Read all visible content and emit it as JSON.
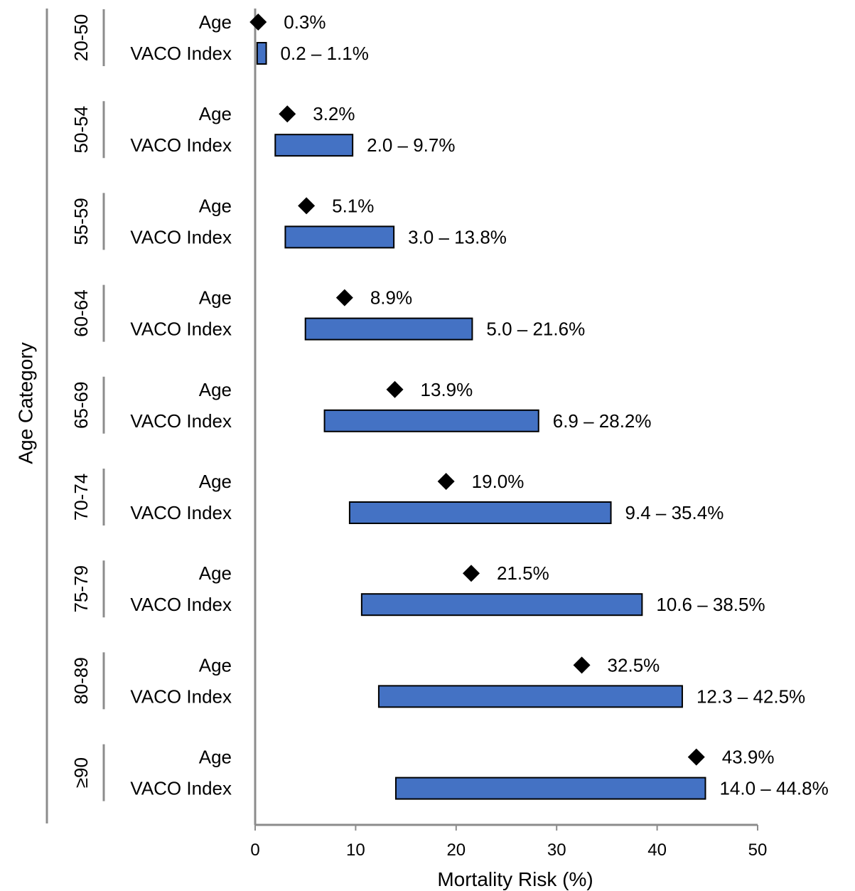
{
  "chart_data": {
    "type": "forest-range",
    "xlabel": "Mortality Risk (%)",
    "ylabel": "Age Category",
    "xlim": [
      0,
      50
    ],
    "xticks": [
      "0",
      "10",
      "20",
      "30",
      "40",
      "50"
    ],
    "row_labels": {
      "point": "Age",
      "range": "VACO Index"
    },
    "colors": {
      "range": "#4472C4",
      "point": "#000000",
      "axis": "#8c8c8c"
    },
    "categories": [
      {
        "name": "20-50",
        "age_value": 0.3,
        "age_label": "0.3%",
        "range": [
          0.2,
          1.1
        ],
        "range_label": "0.2 – 1.1%"
      },
      {
        "name": "50-54",
        "age_value": 3.2,
        "age_label": "3.2%",
        "range": [
          2.0,
          9.7
        ],
        "range_label": "2.0 – 9.7%"
      },
      {
        "name": "55-59",
        "age_value": 5.1,
        "age_label": "5.1%",
        "range": [
          3.0,
          13.8
        ],
        "range_label": "3.0 – 13.8%"
      },
      {
        "name": "60-64",
        "age_value": 8.9,
        "age_label": "8.9%",
        "range": [
          5.0,
          21.6
        ],
        "range_label": "5.0 – 21.6%"
      },
      {
        "name": "65-69",
        "age_value": 13.9,
        "age_label": "13.9%",
        "range": [
          6.9,
          28.2
        ],
        "range_label": "6.9 – 28.2%"
      },
      {
        "name": "70-74",
        "age_value": 19.0,
        "age_label": "19.0%",
        "range": [
          9.4,
          35.4
        ],
        "range_label": "9.4 – 35.4%"
      },
      {
        "name": "75-79",
        "age_value": 21.5,
        "age_label": "21.5%",
        "range": [
          10.6,
          38.5
        ],
        "range_label": "10.6 – 38.5%"
      },
      {
        "name": "80-89",
        "age_value": 32.5,
        "age_label": "32.5%",
        "range": [
          12.3,
          42.5
        ],
        "range_label": "12.3 – 42.5%"
      },
      {
        "name": "≥90",
        "age_value": 43.9,
        "age_label": "43.9%",
        "range": [
          14.0,
          44.8
        ],
        "range_label": "14.0 – 44.8%"
      }
    ]
  }
}
